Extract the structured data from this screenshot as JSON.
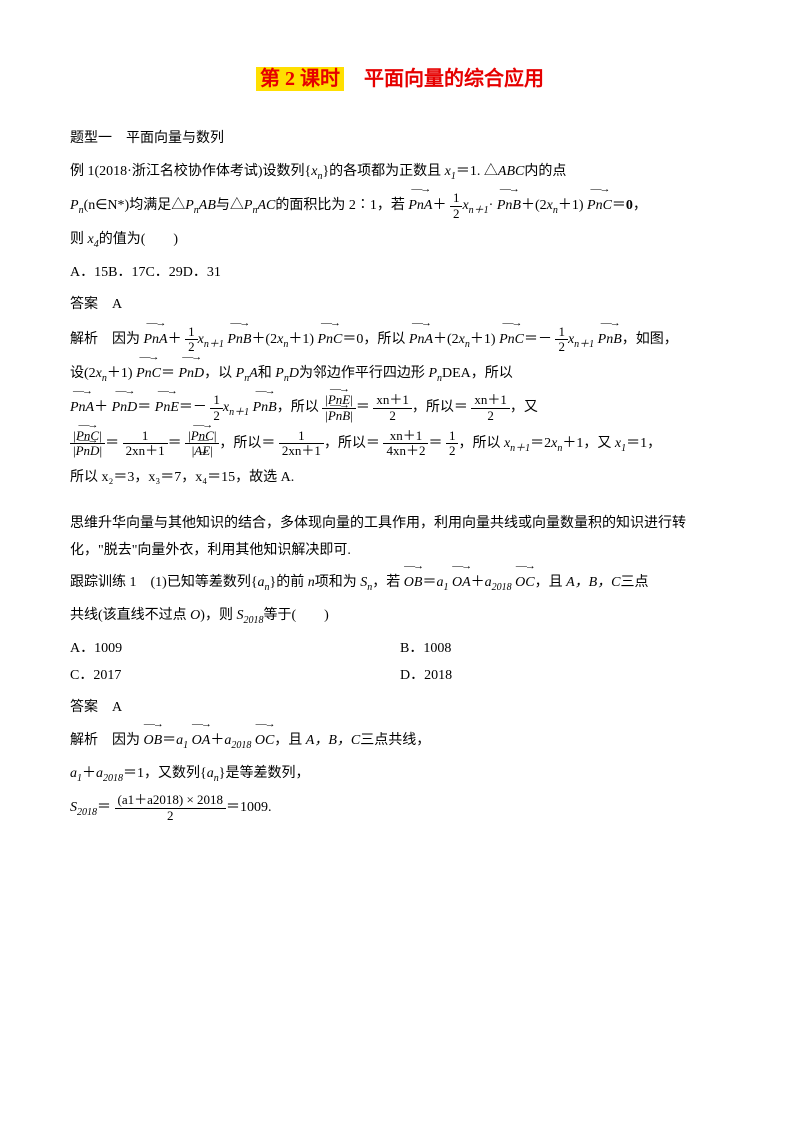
{
  "title": {
    "highlight": "第 2 课时",
    "rest": "　平面向量的综合应用"
  },
  "p1": "题型一　平面向量与数列",
  "p2a": "例 1(2018·浙江名校协作体考试)设数列{",
  "p2b": "}的各项都为正数且 ",
  "p2c": "＝1. △",
  "p2d": "内的点",
  "p3a": "(n∈",
  "p3b": ")均满足△",
  "p3c": "与△",
  "p3d": "的面积比为 2∶1，若",
  "p3e": "＋",
  "p3f": "·",
  "p3g": "＋(2",
  "p3h": "＋1)",
  "p3i": "＝",
  "p3j": "，",
  "p4": "则 ",
  "p4b": "的值为(　　)",
  "opts1": "A．15B．17C．29D．31",
  "ans1": "答案　A",
  "p5a": "解析　因为",
  "p5b": "＋",
  "p5c": "＋(2",
  "p5d": "＋1)",
  "p5e": "＝0，所以",
  "p5f": "＋(2",
  "p5g": "＋1)",
  "p5h": "＝－",
  "p5i": "，如图，",
  "p6a": "设(2",
  "p6b": "＋1)",
  "p6c": "＝",
  "p6d": "，以 ",
  "p6e": "和 ",
  "p6f": "为邻边作平行四边形 ",
  "p6g": "DEA，所以",
  "p7a": "＋",
  "p7b": "＝",
  "p7c": "＝－",
  "p7d": "，所以",
  "p7e": "＝",
  "p7f": "，所以＝",
  "p7g": "，又",
  "p8a": "＝",
  "p8b": "＝",
  "p8c": "，所以＝",
  "p8d": "，所以＝",
  "p8e": "＝",
  "p8f": "，所以 ",
  "p8g": "＝2",
  "p8h": "＋1，又 ",
  "p8i": "＝1，",
  "p9": "所以 x₂＝3，x₃＝7，x₄＝15，故选 A.",
  "p10": "思维升华向量与其他知识的结合，多体现向量的工具作用，利用向量共线或向量数量积的知识进行转化，\"脱去\"向量外衣，利用其他知识解决即可.",
  "p11a": "跟踪训练 1　(1)已知等差数列{",
  "p11b": "}的前 ",
  "p11c": "项和为 ",
  "p11d": "，若",
  "p11e": "＝",
  "p11f": "＋",
  "p11g": "，且 ",
  "p11h": "三点",
  "p12a": "共线(该直线不过点 ",
  "p12b": ")，则 ",
  "p12c": "等于(　　)",
  "optA": "A．1009",
  "optB": "B．1008",
  "optC": "C．2017",
  "optD": "D．2018",
  "ans2": "答案　A",
  "p13a": "解析　因为",
  "p13b": "＝",
  "p13c": "＋",
  "p13d": "，且 ",
  "p13e": "三点共线，",
  "p14a": "＋",
  "p14b": "＝1，又数列{",
  "p14c": "}是等差数列，",
  "p15a": "＝",
  "p15b": "＝1009.",
  "frac_half_num": "1",
  "frac_half_den": "2",
  "frac_xn1_num1": "xn＋1",
  "frac_xn1_den1": "2",
  "frac_1_2xn1_num": "1",
  "frac_2xn1_den": "2xn＋1",
  "frac_1_4xn2_den": "4xn＋2",
  "frac_last_num": "(a1＋a2018) × 2018",
  "frac_last_den": "2",
  "labels": {
    "xn": "x",
    "n": "n",
    "x1": "x",
    "one": "1",
    "x4": "x",
    "four": "4",
    "ABC": "ABC",
    "Pn": "P",
    "PnAB": "AB",
    "PnAC": "AC",
    "PnA": "PnA",
    "PnB": "PnB",
    "PnC": "PnC",
    "PnD": "PnD",
    "PnE": "PnE",
    "AE": "AE",
    "OB": "OB",
    "OA": "OA",
    "OC": "OC",
    "zero": "0",
    "xnp1sub": "n＋1",
    "Nstar": "N*",
    "an": "a",
    "Sn": "S",
    "S2018": "S",
    "sub2018": "2018",
    "a1": "a",
    "a2018": "a",
    "ABCpts": "A，B，C",
    "italic_n": "n",
    "O": "O"
  }
}
